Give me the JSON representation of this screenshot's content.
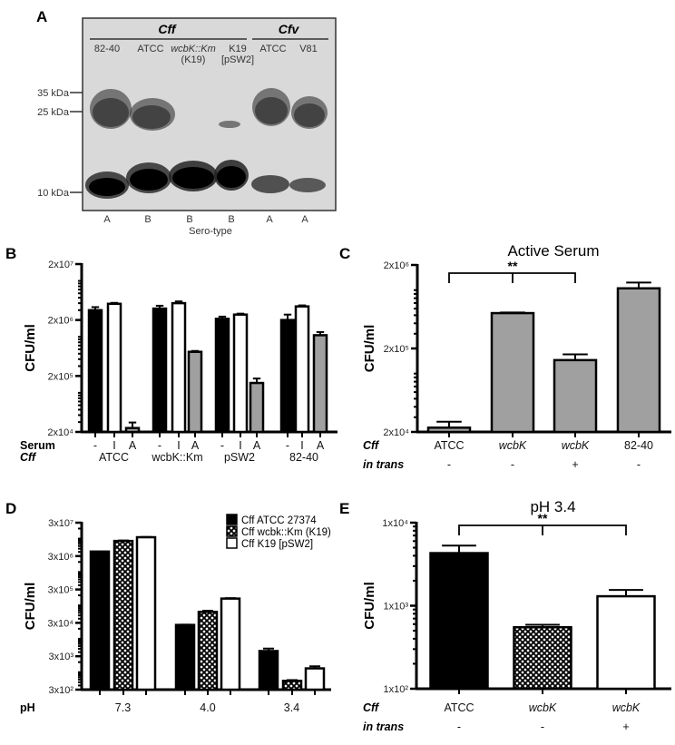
{
  "panel_letters": {
    "a": "A",
    "b": "B",
    "c": "C",
    "d": "D",
    "e": "E"
  },
  "gel": {
    "species": [
      {
        "name": "Cff"
      },
      {
        "name": "Cfv"
      }
    ],
    "lanes": [
      {
        "line1": "82-40",
        "line2": "",
        "serotype": "A"
      },
      {
        "line1": "ATCC",
        "line2": "",
        "serotype": "B"
      },
      {
        "line1": "wcbK::Km",
        "line2": "(K19)",
        "serotype": "B"
      },
      {
        "line1": "K19",
        "line2": "[pSW2]",
        "serotype": "B"
      },
      {
        "line1": "ATCC",
        "line2": "",
        "serotype": "A"
      },
      {
        "line1": "V81",
        "line2": "",
        "serotype": "A"
      }
    ],
    "markers": [
      "35 kDa",
      "25 kDa",
      "10 kDa"
    ],
    "serotype_title": "Sero-type"
  },
  "chart_data": [
    {
      "id": "B",
      "type": "bar",
      "title": "",
      "ylabel": "CFU/ml",
      "yscale": "log",
      "ylim": [
        20000,
        20000000
      ],
      "yticks": [
        {
          "v": 20000,
          "label": "2x10⁴"
        },
        {
          "v": 200000,
          "label": "2x10⁵"
        },
        {
          "v": 2000000,
          "label": "2x10⁶"
        },
        {
          "v": 20000000,
          "label": "2x10⁷"
        }
      ],
      "categories": [
        "ATCC",
        "wcbK::Km",
        "pSW2",
        "82-40"
      ],
      "series": [
        {
          "name": "-",
          "fill": "#000000",
          "values": [
            3000000,
            3200000,
            2100000,
            2000000
          ],
          "errors": [
            400000,
            400000,
            200000,
            500000
          ]
        },
        {
          "name": "I",
          "fill": "#ffffff",
          "values": [
            3900000,
            4000000,
            2500000,
            3500000
          ],
          "errors": [
            150000,
            300000,
            100000,
            150000
          ]
        },
        {
          "name": "A",
          "fill": "#a0a0a0",
          "values": [
            23500,
            540000,
            150000,
            1070000
          ],
          "errors": [
            6000,
            20000,
            30000,
            150000
          ]
        }
      ],
      "rows": [
        {
          "label": "Serum",
          "labels": [
            "-",
            "I",
            "A",
            "-",
            "I",
            "A",
            "-",
            "I",
            "A",
            "-",
            "I",
            "A"
          ]
        },
        {
          "label": "Cff",
          "labels": [
            "ATCC",
            "wcbK::Km",
            "pSW2",
            "82-40"
          ]
        }
      ]
    },
    {
      "id": "C",
      "type": "bar",
      "title": "Active Serum",
      "ylabel": "CFU/ml",
      "yscale": "log",
      "ylim": [
        20000,
        2000000
      ],
      "yticks": [
        {
          "v": 20000,
          "label": "2x10⁴"
        },
        {
          "v": 200000,
          "label": "2x10⁵"
        },
        {
          "v": 2000000,
          "label": "2x10⁶"
        }
      ],
      "categories": [
        "ATCC",
        "wcbK",
        "wcbK",
        "82-40"
      ],
      "series": [
        {
          "name": "Active serum",
          "fill": "#a0a0a0",
          "values": [
            22500,
            530000,
            145000,
            1050000
          ],
          "errors": [
            4000,
            10000,
            25000,
            180000
          ]
        }
      ],
      "rows": [
        {
          "label": "Cff",
          "labels": [
            "ATCC",
            "wcbK",
            "wcbK",
            "82-40"
          ]
        },
        {
          "label": "in trans",
          "labels": [
            "-",
            "-",
            "+",
            "-"
          ]
        }
      ],
      "significance": {
        "from": 0,
        "mid": 1,
        "to": 2,
        "label": "**"
      }
    },
    {
      "id": "D",
      "type": "bar",
      "title": "",
      "ylabel": "CFU/ml",
      "yscale": "log",
      "ylim": [
        300,
        30000000
      ],
      "yticks": [
        {
          "v": 300,
          "label": "3x10²"
        },
        {
          "v": 3000,
          "label": "3x10³"
        },
        {
          "v": 30000,
          "label": "3x10⁴"
        },
        {
          "v": 300000,
          "label": "3x10⁵"
        },
        {
          "v": 3000000,
          "label": "3x10⁶"
        },
        {
          "v": 30000000,
          "label": "3x10⁷"
        }
      ],
      "categories": [
        "7.3",
        "4.0",
        "3.4"
      ],
      "series": [
        {
          "name": "Cff ATCC  27374",
          "fill": "#000000",
          "values": [
            4100000,
            26000,
            4300
          ],
          "errors": [
            0,
            500,
            800
          ]
        },
        {
          "name": "Cff wcbk::Km (K19)",
          "fill": "hatch",
          "values": [
            8500000,
            64000,
            550
          ],
          "errors": [
            300000,
            5000,
            30
          ]
        },
        {
          "name": "Cff  K19 [pSW2]",
          "fill": "#ffffff",
          "values": [
            11000000,
            160000,
            1300
          ],
          "errors": [
            200000,
            5000,
            200
          ]
        }
      ],
      "legend": "top-right",
      "rows": [
        {
          "label": "pH",
          "labels": [
            "7.3",
            "4.0",
            "3.4"
          ]
        }
      ]
    },
    {
      "id": "E",
      "type": "bar",
      "title": "pH 3.4",
      "ylabel": "CFU/ml",
      "yscale": "log",
      "ylim": [
        100,
        10000
      ],
      "yticks": [
        {
          "v": 100,
          "label": "1x10²"
        },
        {
          "v": 1000,
          "label": "1x10³"
        },
        {
          "v": 10000,
          "label": "1x10⁴"
        }
      ],
      "categories": [
        "ATCC",
        "wcbK",
        "wcbK"
      ],
      "series": [
        {
          "name": "pH 3.4",
          "fills": [
            "#000000",
            "hatch",
            "#ffffff"
          ],
          "values": [
            4300,
            550,
            1300
          ],
          "errors": [
            1000,
            40,
            250
          ]
        }
      ],
      "rows": [
        {
          "label": "Cff",
          "labels": [
            "ATCC",
            "wcbK",
            "wcbK"
          ]
        },
        {
          "label": "in trans",
          "labels": [
            "-",
            "-",
            "+"
          ]
        }
      ],
      "significance": {
        "from": 0,
        "mid": 1,
        "to": 2,
        "label": "**"
      }
    }
  ]
}
